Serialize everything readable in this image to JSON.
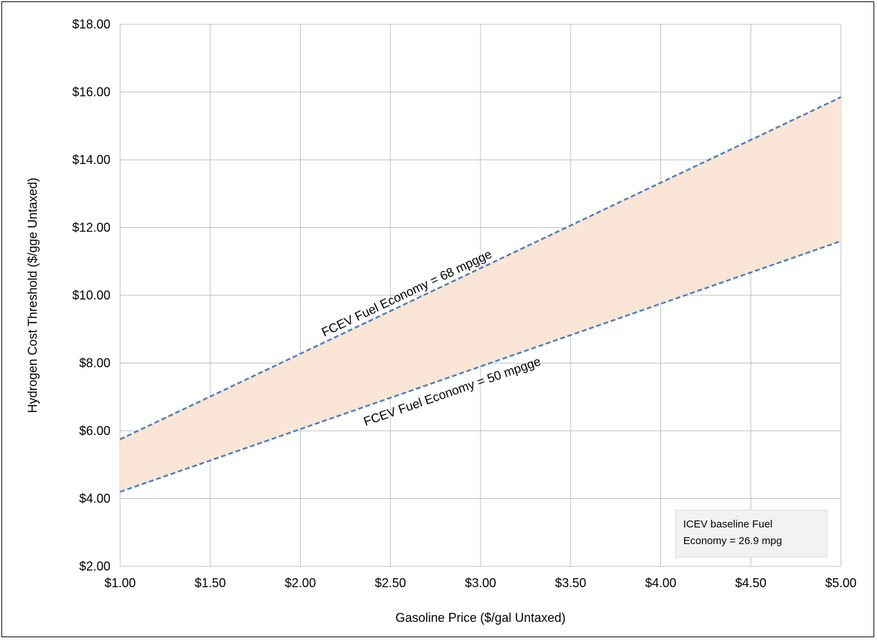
{
  "chart_data": {
    "type": "area",
    "title": "",
    "xlabel": "Gasoline Price ($/gal Untaxed)",
    "ylabel": "Hydrogen Cost Threshold ($/gge Untaxed)",
    "xlim": [
      1.0,
      5.0
    ],
    "ylim": [
      2.0,
      18.0
    ],
    "x_ticks": [
      1.0,
      1.5,
      2.0,
      2.5,
      3.0,
      3.5,
      4.0,
      4.5,
      5.0
    ],
    "x_tick_labels": [
      "$1.00",
      "$1.50",
      "$2.00",
      "$2.50",
      "$3.00",
      "$3.50",
      "$4.00",
      "$4.50",
      "$5.00"
    ],
    "y_ticks": [
      2,
      4,
      6,
      8,
      10,
      12,
      14,
      16,
      18
    ],
    "y_tick_labels": [
      "$2.00",
      "$4.00",
      "$6.00",
      "$8.00",
      "$10.00",
      "$12.00",
      "$14.00",
      "$16.00",
      "$18.00"
    ],
    "grid": true,
    "legend": "none",
    "x": [
      1.0,
      5.0
    ],
    "series": [
      {
        "name": "FCEV Fuel Economy = 68 mpgge",
        "values": [
          5.75,
          15.85
        ],
        "style": "dashed",
        "color": "#4a7ebb"
      },
      {
        "name": "FCEV Fuel Economy = 50 mpgge",
        "values": [
          4.2,
          11.6
        ],
        "style": "dashed",
        "color": "#4a7ebb"
      }
    ],
    "band": {
      "between": [
        "FCEV Fuel Economy = 50 mpgge",
        "FCEV Fuel Economy = 68 mpgge"
      ],
      "color": "#fbe5d6"
    },
    "annotation": {
      "lines": [
        "ICEV baseline Fuel",
        "Economy = 26.9 mpg"
      ]
    }
  },
  "colors": {
    "grid": "#bfbfbf",
    "line": "#4a7ebb",
    "band": "#fbe5d6",
    "note_bg": "#f2f2f2",
    "note_border": "#d9d9d9"
  }
}
